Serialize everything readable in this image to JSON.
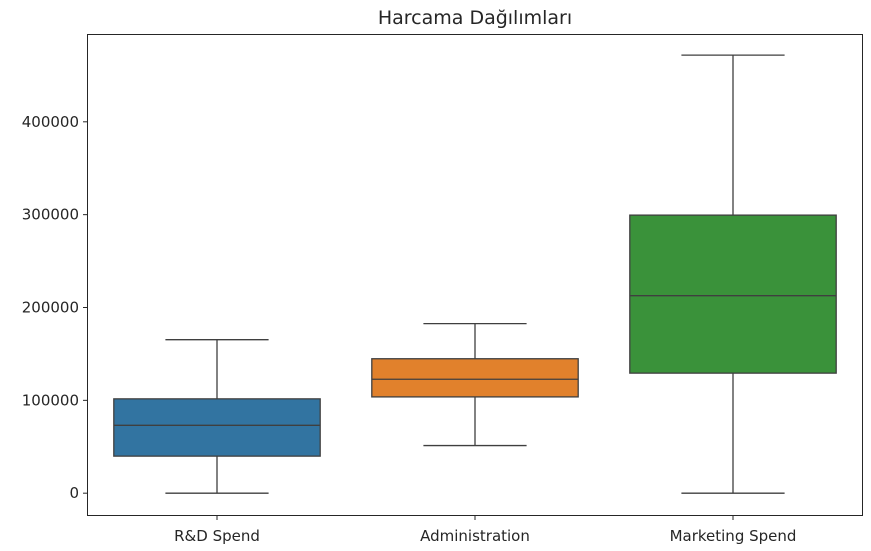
{
  "chart_data": {
    "type": "box",
    "title": "Harcama Dağılımları",
    "xlabel": "",
    "ylabel": "",
    "ylim": [
      -23500,
      493500
    ],
    "yticks": [
      0,
      100000,
      200000,
      300000,
      400000
    ],
    "ytick_labels": [
      "0",
      "100000",
      "200000",
      "300000",
      "400000"
    ],
    "grid": false,
    "categories": [
      "R&D Spend",
      "Administration",
      "Marketing Spend"
    ],
    "boxes": [
      {
        "name": "R&D Spend",
        "color": "#3274a1",
        "whisker_low": 0,
        "q1": 39900,
        "median": 73100,
        "q3": 101600,
        "whisker_high": 165300
      },
      {
        "name": "Administration",
        "color": "#e1812c",
        "whisker_low": 51300,
        "q1": 103700,
        "median": 122700,
        "q3": 144800,
        "whisker_high": 182600
      },
      {
        "name": "Marketing Spend",
        "color": "#3a923a",
        "whisker_low": 0,
        "q1": 129300,
        "median": 212700,
        "q3": 299500,
        "whisker_high": 471800
      }
    ]
  }
}
